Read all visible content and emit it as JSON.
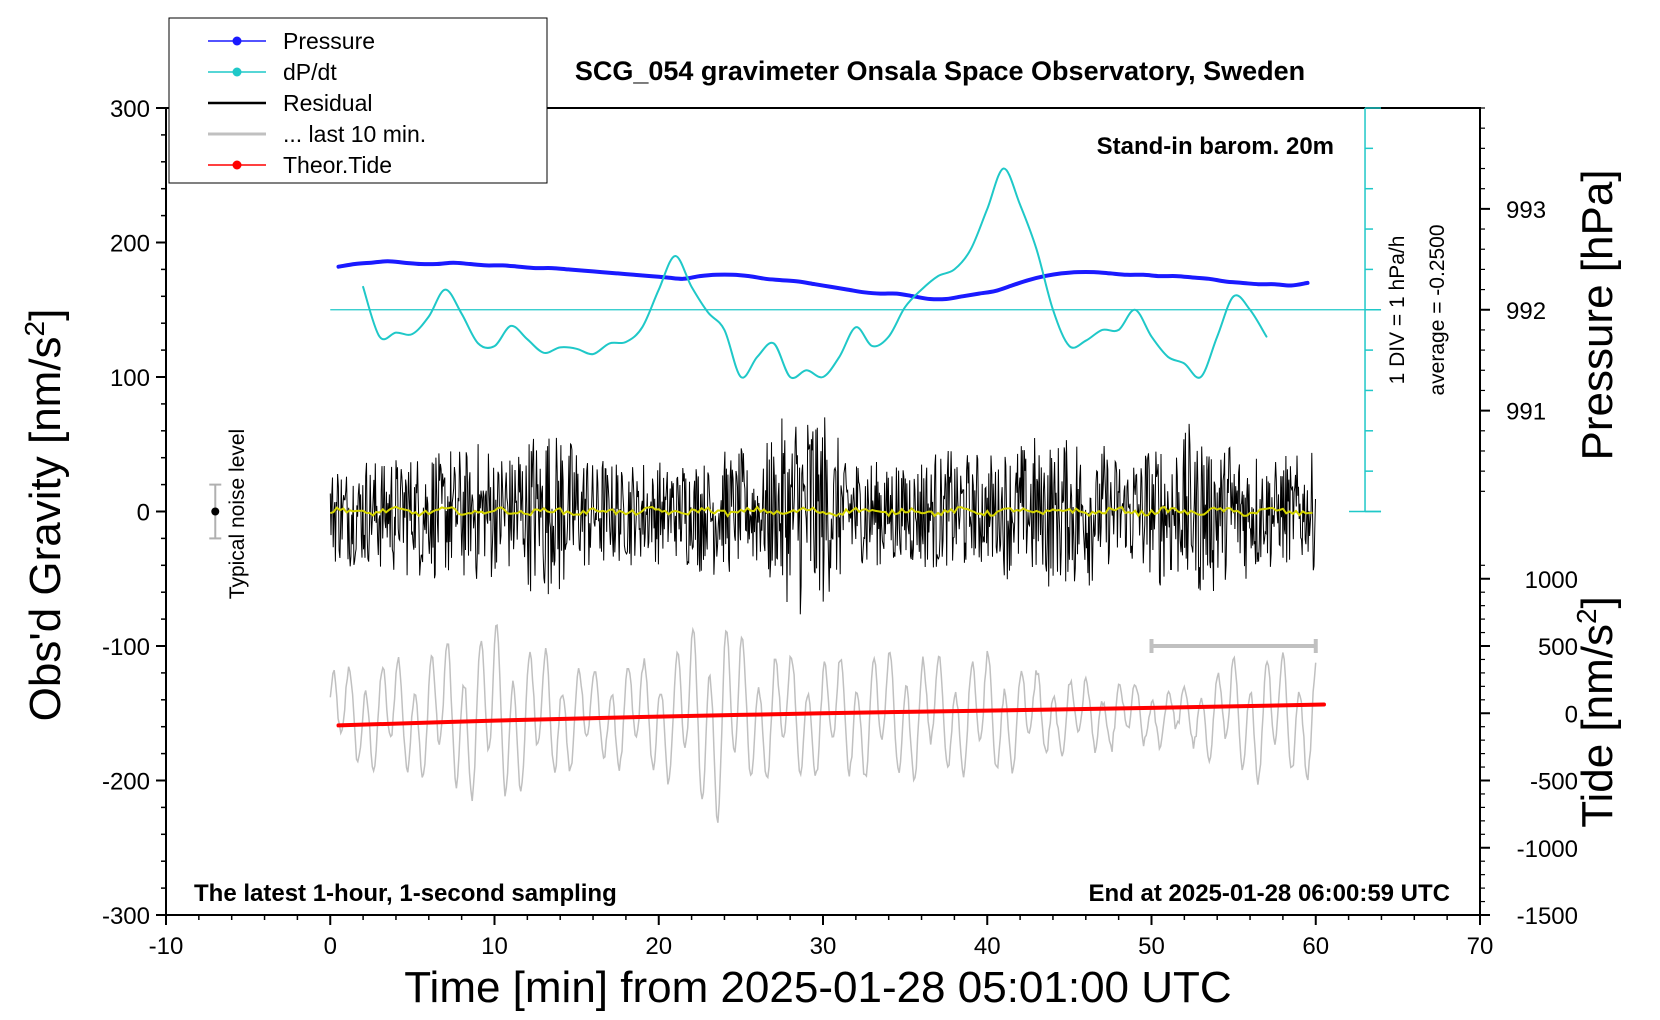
{
  "chart_data": {
    "type": "line",
    "title": "SCG_054 gravimeter Onsala Space Observatory, Sweden",
    "xlabel": "Time [min] from 2025-01-28 05:01:00 UTC",
    "ylabel_left_main": "Obs'd Gravity [nm/s",
    "ylabel_left_sup": "2",
    "ylabel_left_end": "]",
    "ylabel_right_pressure": "Pressure [hPa]",
    "ylabel_right_tide_main": "Tide [nm/s",
    "ylabel_right_tide_sup": "2",
    "ylabel_right_tide_end": "]",
    "xlim": [
      -10,
      70
    ],
    "ylim": [
      -300,
      300
    ],
    "x_ticks": [
      -10,
      0,
      10,
      20,
      30,
      40,
      50,
      60,
      70
    ],
    "x_tick_labels": [
      "-10",
      "0",
      "10",
      "20",
      "30",
      "40",
      "50",
      "60",
      "70"
    ],
    "y_ticks": [
      300,
      200,
      100,
      0,
      -100,
      -200,
      -300
    ],
    "y_tick_labels": [
      "300",
      "200",
      "100",
      "0",
      "-100",
      "-200",
      "-300"
    ],
    "pressure_axis": {
      "ticks": [
        993,
        992,
        991
      ],
      "labels": [
        "993",
        "992",
        "991"
      ],
      "gravity_equiv": [
        225,
        150,
        75
      ]
    },
    "tide_axis": {
      "ticks": [
        1000,
        500,
        0,
        -500,
        -1000,
        -1500
      ],
      "labels": [
        "1000",
        "500",
        "0",
        "-500",
        "-1000",
        "-1500"
      ],
      "gravity_equiv": [
        -50,
        -100,
        -150,
        -200,
        -250,
        -300
      ]
    },
    "dpdt_scale": {
      "label_div": "1 DIV = 1 hPa/h",
      "label_avg": "average = -0.2500",
      "x": 63,
      "baseline": 150,
      "range": [
        0,
        300
      ],
      "div": 30
    },
    "barometer_note": "Stand-in barom. 20m",
    "footer_left": "The latest 1-hour, 1-second sampling",
    "footer_right": "End at 2025-01-28 06:00:59 UTC",
    "noise_indicator": {
      "label": "Typical noise level",
      "x": -7,
      "y": 0,
      "half_range": 20
    },
    "window_bar": {
      "x_start": 50,
      "x_end": 60,
      "y": -100
    },
    "legend": [
      {
        "label": "Pressure",
        "color": "#1a1aff",
        "marker": true
      },
      {
        "label": "dP/dt",
        "color": "#1fc8c8",
        "marker": true
      },
      {
        "label": "Residual",
        "color": "#000000",
        "marker": false
      },
      {
        "label": "... last 10 min.",
        "color": "#c0c0c0",
        "marker": false
      },
      {
        "label": "Theor.Tide",
        "color": "#ff0000",
        "marker": true
      }
    ],
    "series": [
      {
        "name": "Pressure",
        "color": "#1a1aff",
        "x": [
          0.5,
          1.5,
          2.5,
          3.5,
          4.5,
          5.5,
          6.5,
          7.5,
          8.5,
          9.5,
          10.5,
          11.5,
          12.5,
          13.5,
          14.5,
          15.5,
          16.5,
          17.5,
          18.5,
          19.5,
          20.5,
          21.5,
          22.5,
          23.5,
          24.5,
          25.5,
          26.5,
          27.5,
          28.5,
          29.5,
          30.5,
          31.5,
          32.5,
          33.5,
          34.5,
          35.5,
          36.5,
          37.5,
          38.5,
          39.5,
          40.5,
          41.5,
          42.5,
          43.5,
          44.5,
          45.5,
          46.5,
          47.5,
          48.5,
          49.5,
          50.5,
          51.5,
          52.5,
          53.5,
          54.5,
          55.5,
          56.5,
          57.5,
          58.5,
          59.5
        ],
        "y": [
          182,
          184,
          185,
          186,
          185,
          184,
          184,
          185,
          184,
          183,
          183,
          182,
          181,
          181,
          180,
          179,
          178,
          177,
          176,
          175,
          174,
          173,
          175,
          176,
          176,
          175,
          173,
          172,
          171,
          169,
          167,
          165,
          163,
          162,
          162,
          160,
          158,
          158,
          160,
          162,
          164,
          168,
          172,
          175,
          177,
          178,
          178,
          177,
          176,
          176,
          175,
          175,
          174,
          173,
          171,
          170,
          169,
          169,
          168,
          170
        ]
      },
      {
        "name": "dP/dt",
        "color": "#1fc8c8",
        "x": [
          2,
          3,
          4,
          5,
          6,
          7,
          8,
          9,
          10,
          11,
          12,
          13,
          14,
          15,
          16,
          17,
          18,
          19,
          20,
          21,
          22,
          23,
          24,
          25,
          26,
          27,
          28,
          29,
          30,
          31,
          32,
          33,
          34,
          35,
          36,
          37,
          38,
          39,
          40,
          41,
          42,
          43,
          44,
          45,
          46,
          47,
          48,
          49,
          50,
          51,
          52,
          53,
          54,
          55,
          56,
          57
        ],
        "y": [
          167,
          130,
          133,
          132,
          145,
          165,
          147,
          125,
          123,
          138,
          128,
          118,
          122,
          121,
          117,
          125,
          126,
          137,
          165,
          190,
          167,
          148,
          135,
          100,
          115,
          125,
          100,
          105,
          100,
          115,
          137,
          123,
          130,
          152,
          165,
          175,
          180,
          195,
          225,
          255,
          228,
          195,
          150,
          123,
          127,
          135,
          135,
          150,
          130,
          115,
          110,
          100,
          130,
          160,
          150,
          130
        ]
      },
      {
        "name": "Theor.Tide",
        "color": "#ff0000",
        "x": [
          0.5,
          10,
          20,
          30,
          40,
          50,
          60.5
        ],
        "y": [
          -159,
          -155.5,
          -152.5,
          -150,
          -148,
          -146,
          -143.5
        ]
      }
    ],
    "residual_amplitude_envelope": {
      "x": [
        0,
        5,
        10,
        12,
        14,
        16,
        20,
        24,
        26,
        28,
        29.5,
        31,
        34,
        38,
        40,
        42,
        45,
        48,
        50,
        53,
        55,
        57,
        60
      ],
      "amplitude": [
        40,
        50,
        55,
        65,
        70,
        45,
        40,
        50,
        45,
        80,
        95,
        55,
        45,
        50,
        45,
        55,
        65,
        45,
        55,
        70,
        60,
        45,
        45
      ]
    },
    "last10_amplitude_envelope": {
      "x": [
        0,
        5,
        10,
        12,
        16,
        20,
        23.5,
        26,
        30,
        34,
        38,
        40,
        44,
        48,
        52,
        56,
        60
      ],
      "amplitude": [
        35,
        45,
        70,
        55,
        35,
        45,
        80,
        50,
        45,
        50,
        45,
        50,
        30,
        25,
        20,
        50,
        45
      ]
    }
  }
}
